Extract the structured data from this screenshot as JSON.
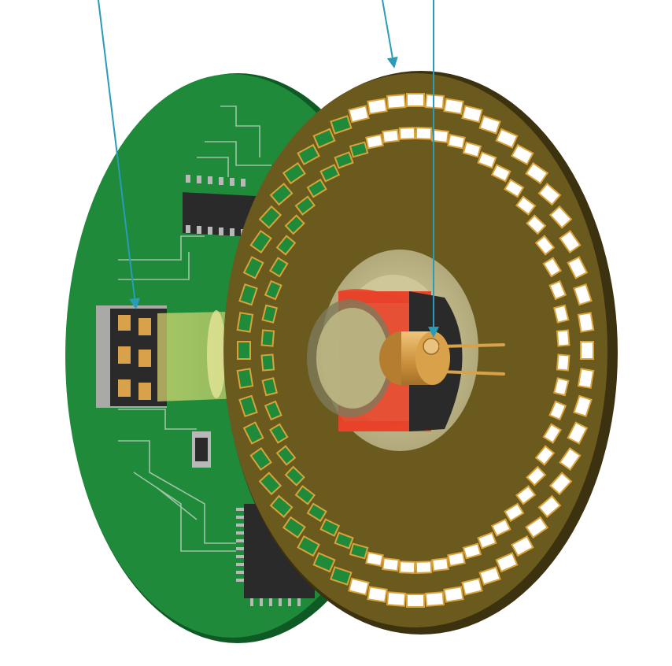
{
  "figure": {
    "description_labels": [],
    "colors": {
      "background": "#ffffff",
      "pcb_green": "#1f8a3a",
      "pcb_green_dark": "#146b2b",
      "pcb_edge": "#0f5a24",
      "trace": "#c9d6c9",
      "chip_black": "#2a2a2a",
      "pin_silver": "#b8b8b8",
      "disk_olive": "#6b5a1e",
      "disk_edge": "#3d320f",
      "slot_gold": "#d9a23a",
      "slot_window": "#ffffff",
      "hub_cream": "#d8d3a6",
      "bracket_red": "#e8442a",
      "led_gold": "#d9a24a",
      "beam_yellow": "#e6e070",
      "arrow_blue": "#2a9bb8"
    },
    "callouts": [
      {
        "name": "sensor-callout"
      },
      {
        "name": "disk-callout"
      },
      {
        "name": "emitter-callout"
      }
    ],
    "disk": {
      "outer_ring_slots": 56,
      "inner_ring_slots": 56
    }
  }
}
